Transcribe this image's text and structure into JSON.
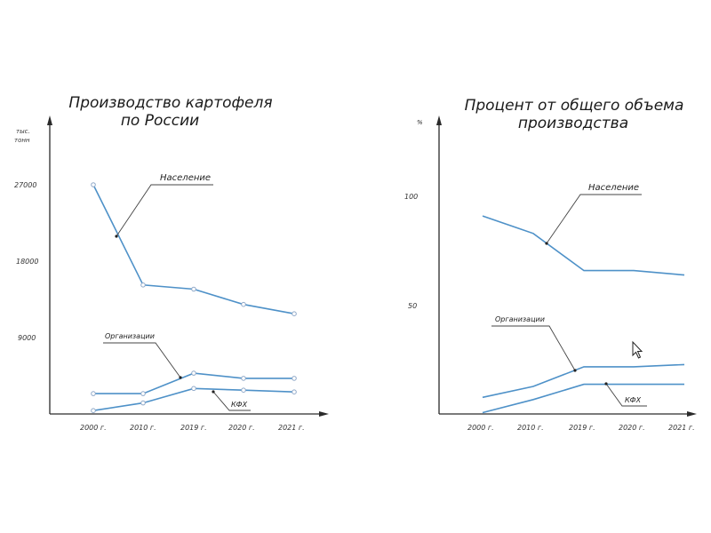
{
  "chart_data": [
    {
      "type": "line",
      "title_lines": [
        "Производство картофеля",
        "по России"
      ],
      "ylabel_lines": [
        "тыс.",
        "тонн"
      ],
      "y_ticks": [
        "27000",
        "18000",
        "9000"
      ],
      "categories": [
        "2000 г.",
        "2010 г.",
        "2019 г.",
        "2020 г.",
        "2021 г."
      ],
      "grid": false,
      "legend": "none",
      "markers": true,
      "series_color": "#4e91c8",
      "series": [
        {
          "name": "Население",
          "values": [
            27000,
            15200,
            14700,
            12900,
            11800
          ]
        },
        {
          "name": "Организации",
          "values": [
            2400,
            2400,
            4800,
            4200,
            4200
          ]
        },
        {
          "name": "КФХ",
          "values": [
            400,
            1300,
            3000,
            2800,
            2600
          ]
        }
      ]
    },
    {
      "type": "line",
      "title_lines": [
        "Процент от общего объема",
        "производства"
      ],
      "ylabel_lines": [
        "%"
      ],
      "y_ticks": [
        "100",
        "50"
      ],
      "categories": [
        "2000 г.",
        "2010 г.",
        "2019 г.",
        "2020 г.",
        "2021 г."
      ],
      "grid": false,
      "legend": "none",
      "markers": false,
      "series_color": "#4e91c8",
      "series": [
        {
          "name": "Население",
          "values": [
            91,
            83,
            66,
            66,
            64
          ]
        },
        {
          "name": "Организации",
          "values": [
            8,
            13,
            22,
            22,
            23
          ]
        },
        {
          "name": "КФХ",
          "values": [
            1,
            7,
            14,
            14,
            14
          ]
        }
      ]
    }
  ]
}
